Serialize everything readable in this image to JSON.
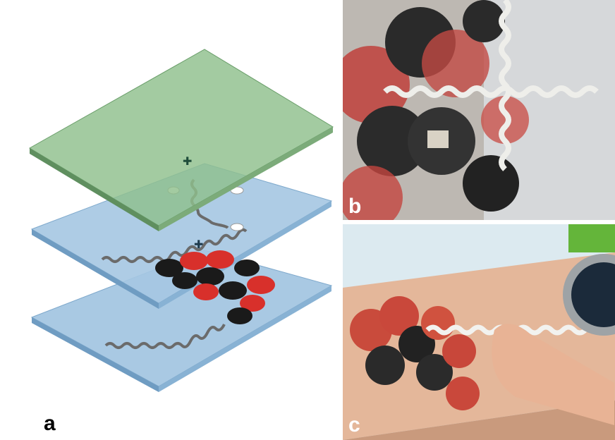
{
  "figure": {
    "panel_labels": {
      "a": "a",
      "b": "b",
      "c": "c"
    }
  },
  "colors": {
    "top_layer_green": "#8fbf8c",
    "blue_layer": "#9ec3e0",
    "red_pattern": "#d8302b",
    "black_pattern": "#1a1a1a",
    "trace_silver": "#cfcfcf"
  },
  "icons": {
    "panel_a": "layer-stack-diagram",
    "panel_b": "tattoo-closeup-photo",
    "panel_c": "tattoo-on-arm-photo"
  }
}
